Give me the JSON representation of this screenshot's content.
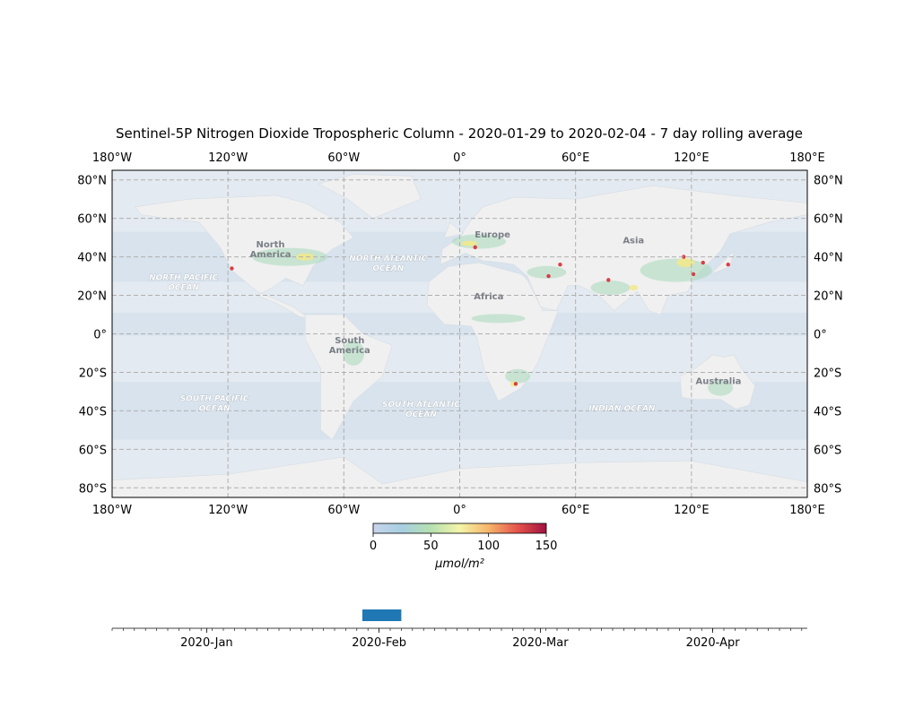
{
  "title": "Sentinel-5P Nitrogen Dioxide Tropospheric Column - 2020-01-29 to 2020-02-04 - 7 day rolling average",
  "map": {
    "lon_ticks": [
      {
        "value": -180,
        "label": "180°W"
      },
      {
        "value": -120,
        "label": "120°W"
      },
      {
        "value": -60,
        "label": "60°W"
      },
      {
        "value": 0,
        "label": "0°"
      },
      {
        "value": 60,
        "label": "60°E"
      },
      {
        "value": 120,
        "label": "120°E"
      },
      {
        "value": 180,
        "label": "180°E"
      }
    ],
    "lat_ticks": [
      {
        "value": 80,
        "label": "80°N"
      },
      {
        "value": 60,
        "label": "60°N"
      },
      {
        "value": 40,
        "label": "40°N"
      },
      {
        "value": 20,
        "label": "20°N"
      },
      {
        "value": 0,
        "label": "0°"
      },
      {
        "value": -20,
        "label": "20°S"
      },
      {
        "value": -40,
        "label": "40°S"
      },
      {
        "value": -60,
        "label": "60°S"
      },
      {
        "value": -80,
        "label": "80°S"
      }
    ],
    "lon_range": [
      -180,
      180
    ],
    "lat_range": [
      -85,
      85
    ],
    "grid": "dashed",
    "place_labels": [
      {
        "lines": [
          "North",
          "America"
        ],
        "lon": -98,
        "lat": 45
      },
      {
        "lines": [
          "Europe"
        ],
        "lon": 17,
        "lat": 50
      },
      {
        "lines": [
          "Asia"
        ],
        "lon": 90,
        "lat": 47
      },
      {
        "lines": [
          "Africa"
        ],
        "lon": 15,
        "lat": 18
      },
      {
        "lines": [
          "South",
          "America"
        ],
        "lon": -57,
        "lat": -5
      },
      {
        "lines": [
          "Australia"
        ],
        "lon": 134,
        "lat": -26
      }
    ],
    "ocean_labels": [
      {
        "lines": [
          "NORTH PACIFIC",
          "OCEAN"
        ],
        "lon": -143,
        "lat": 28
      },
      {
        "lines": [
          "NORTH ATLANTIC",
          "OCEAN"
        ],
        "lon": -37,
        "lat": 38
      },
      {
        "lines": [
          "SOUTH PACIFIC",
          "OCEAN"
        ],
        "lon": -127,
        "lat": -35
      },
      {
        "lines": [
          "SOUTH ATLANTIC",
          "OCEAN"
        ],
        "lon": -20,
        "lat": -38
      },
      {
        "lines": [
          "INDIAN OCEAN"
        ],
        "lon": 84,
        "lat": -40
      }
    ]
  },
  "colorbar": {
    "ticks": [
      {
        "value": 0,
        "label": "0"
      },
      {
        "value": 50,
        "label": "50"
      },
      {
        "value": 100,
        "label": "100"
      },
      {
        "value": 150,
        "label": "150"
      }
    ],
    "range": [
      0,
      150
    ],
    "unit": "μmol/m²",
    "colors": [
      "#c8d4ec",
      "#a7cfe0",
      "#b5e0b0",
      "#f3f5a8",
      "#f6b56b",
      "#e5534b",
      "#a3123f"
    ]
  },
  "timeline": {
    "start": "2019-12-15",
    "end": "2020-04-18",
    "window_start": "2020-01-29",
    "window_end": "2020-02-04",
    "window_color": "#1f77b4",
    "labels": [
      {
        "date": "2020-01-01",
        "label": "2020-Jan"
      },
      {
        "date": "2020-02-01",
        "label": "2020-Feb"
      },
      {
        "date": "2020-03-01",
        "label": "2020-Mar"
      },
      {
        "date": "2020-04-01",
        "label": "2020-Apr"
      }
    ]
  },
  "colors": {
    "land": "#f0f0f0",
    "ocean": "#e4eaf1",
    "grid": "#b0b0b0",
    "low_no2": "#c9dcea",
    "mid_no2": "#a8d8b9",
    "high_no2": "#f2e98a",
    "peak_no2": "#d8343b"
  }
}
